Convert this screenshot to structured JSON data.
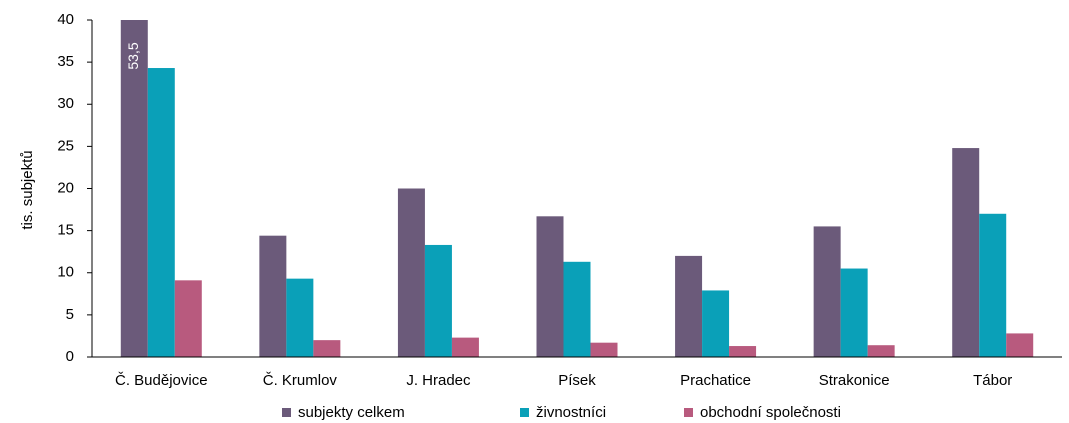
{
  "chart_data": {
    "type": "bar",
    "y_label": "tis. subjektů",
    "categories": [
      "Č. Budějovice",
      "Č. Krumlov",
      "J. Hradec",
      "Písek",
      "Prachatice",
      "Strakonice",
      "Tábor"
    ],
    "series": [
      {
        "name": "subjekty celkem",
        "color": "#6b5a7a",
        "values": [
          53.5,
          14.4,
          20.0,
          16.7,
          12.0,
          15.5,
          24.8
        ],
        "value_labels": [
          "53,5",
          null,
          null,
          null,
          null,
          null,
          null
        ]
      },
      {
        "name": "živnostníci",
        "color": "#0aa0b8",
        "values": [
          34.3,
          9.3,
          13.3,
          11.3,
          7.9,
          10.5,
          17.0
        ]
      },
      {
        "name": "obchodní společnosti",
        "color": "#b85a7e",
        "values": [
          9.1,
          2.0,
          2.3,
          1.7,
          1.3,
          1.4,
          2.8
        ]
      }
    ],
    "ylim": [
      0,
      40
    ],
    "yticks": [
      0,
      5,
      10,
      15,
      20,
      25,
      30,
      35,
      40
    ],
    "grid": false,
    "legend": "bottom"
  }
}
